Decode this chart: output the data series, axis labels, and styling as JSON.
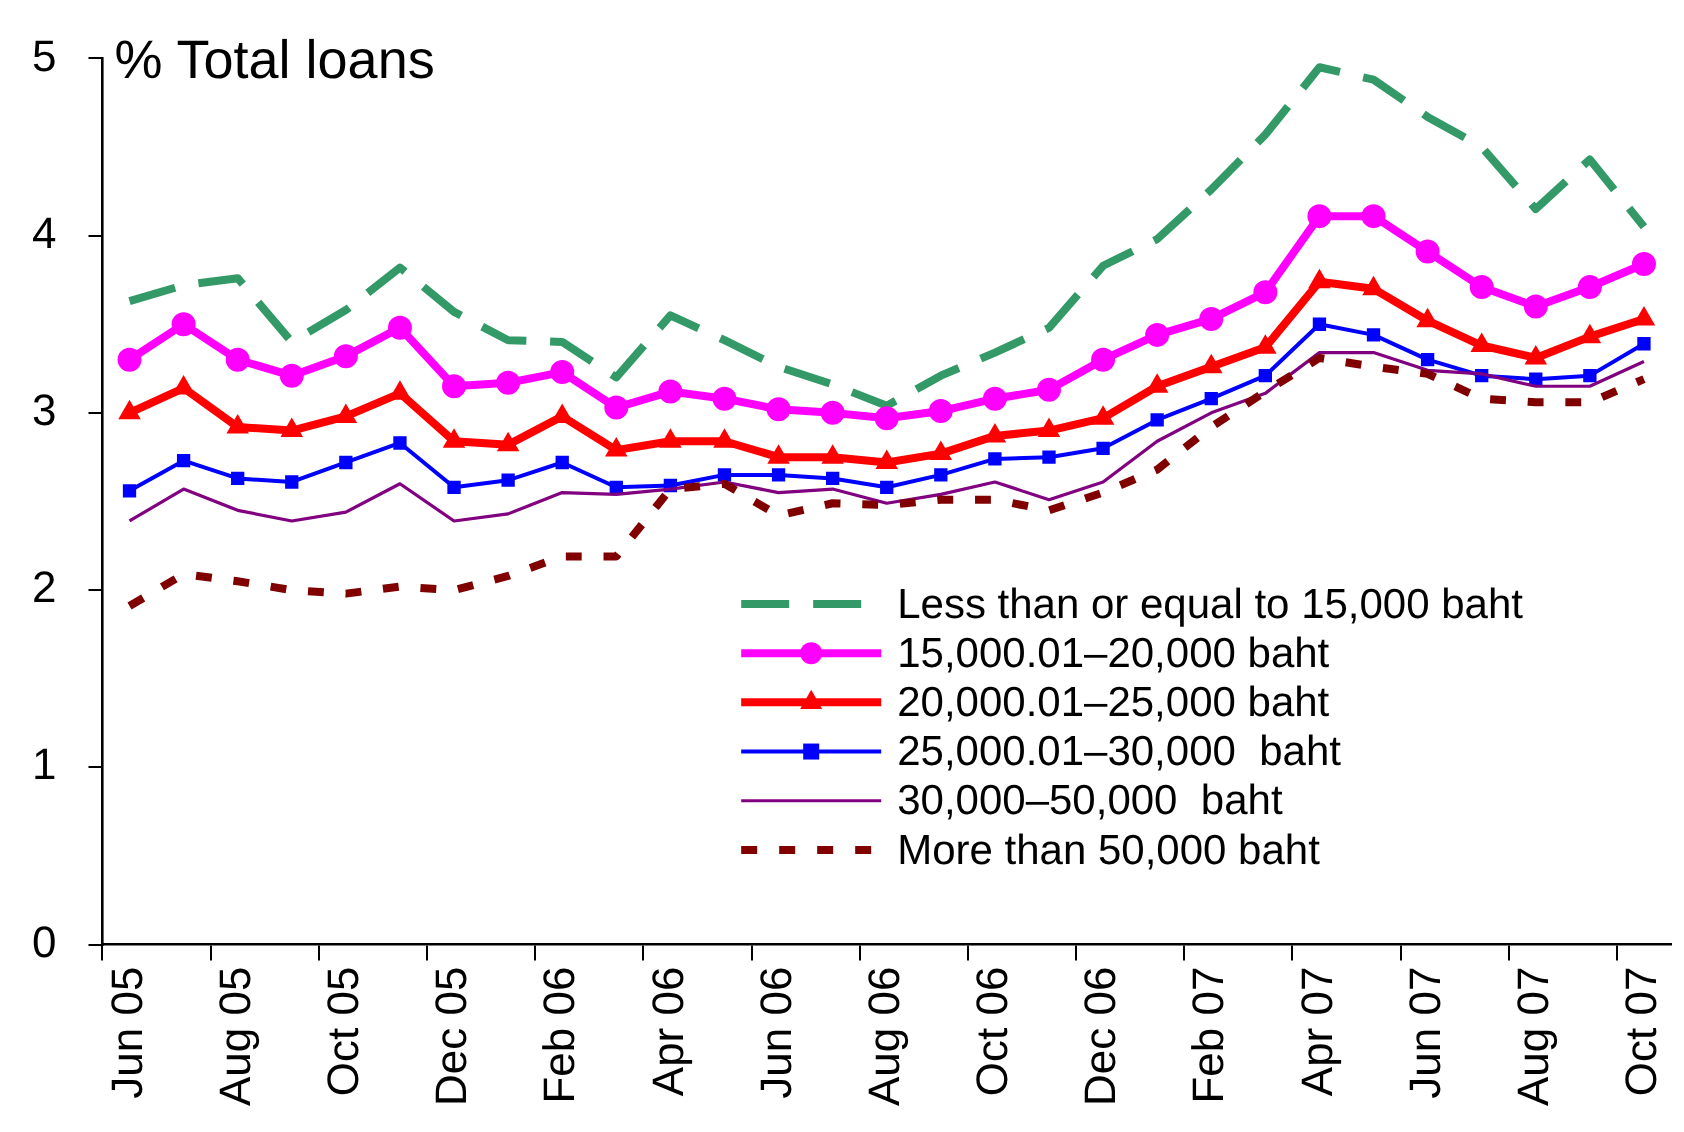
{
  "chart_data": {
    "type": "line",
    "ylabel": "% Total loans",
    "categories": [
      "Jun 05",
      null,
      "Aug 05",
      null,
      "Oct 05",
      null,
      "Dec 05",
      null,
      "Feb 06",
      null,
      "Apr 06",
      null,
      "Jun 06",
      null,
      "Aug 06",
      null,
      "Oct 06",
      null,
      "Dec 06",
      null,
      "Feb 07",
      null,
      "Apr 07",
      null,
      "Jun 07",
      null,
      "Aug 07",
      null,
      "Oct 07"
    ],
    "series": [
      {
        "name": "Less than or equal to 15,000 baht",
        "color": "#339966",
        "line_style": "dashed",
        "marker": "none",
        "values": [
          3.63,
          3.72,
          3.76,
          3.4,
          3.58,
          3.82,
          3.57,
          3.41,
          3.4,
          3.2,
          3.55,
          3.41,
          3.26,
          3.16,
          3.04,
          3.21,
          3.34,
          3.48,
          3.83,
          3.98,
          4.26,
          4.57,
          4.95,
          4.88,
          4.67,
          4.5,
          4.15,
          4.43,
          4.05
        ]
      },
      {
        "name": "15,000.01–20,000 baht",
        "color": "#ff00ff",
        "line_style": "solid",
        "marker": "circle",
        "values": [
          3.3,
          3.5,
          3.3,
          3.21,
          3.32,
          3.48,
          3.15,
          3.17,
          3.23,
          3.03,
          3.12,
          3.08,
          3.02,
          3.0,
          2.97,
          3.01,
          3.08,
          3.13,
          3.3,
          3.44,
          3.53,
          3.68,
          4.11,
          4.11,
          3.91,
          3.71,
          3.6,
          3.71,
          3.84
        ]
      },
      {
        "name": "20,000.01–25,000 baht",
        "color": "#ff0000",
        "line_style": "solid",
        "marker": "triangle",
        "values": [
          3.0,
          3.14,
          2.92,
          2.9,
          2.98,
          3.11,
          2.84,
          2.82,
          2.98,
          2.79,
          2.84,
          2.84,
          2.75,
          2.75,
          2.72,
          2.77,
          2.87,
          2.9,
          2.97,
          3.15,
          3.26,
          3.37,
          3.74,
          3.7,
          3.52,
          3.38,
          3.31,
          3.43,
          3.53
        ]
      },
      {
        "name": "25,000.01–30,000  baht",
        "color": "#0000ff",
        "line_style": "solid",
        "marker": "square",
        "values": [
          2.56,
          2.73,
          2.63,
          2.61,
          2.72,
          2.83,
          2.58,
          2.62,
          2.72,
          2.58,
          2.59,
          2.65,
          2.65,
          2.63,
          2.58,
          2.65,
          2.74,
          2.75,
          2.8,
          2.96,
          3.08,
          3.21,
          3.5,
          3.44,
          3.3,
          3.21,
          3.19,
          3.21,
          3.39
        ]
      },
      {
        "name": "30,000–50,000  baht",
        "color": "#800080",
        "line_style": "solid",
        "marker": "none",
        "values": [
          2.39,
          2.57,
          2.45,
          2.39,
          2.44,
          2.6,
          2.39,
          2.43,
          2.55,
          2.54,
          2.57,
          2.61,
          2.55,
          2.57,
          2.49,
          2.54,
          2.61,
          2.51,
          2.61,
          2.84,
          3.0,
          3.11,
          3.34,
          3.34,
          3.24,
          3.22,
          3.15,
          3.15,
          3.29
        ]
      },
      {
        "name": "More than 50,000 baht",
        "color": "#800000",
        "line_style": "dotted",
        "marker": "none",
        "values": [
          1.91,
          2.09,
          2.05,
          2.0,
          1.98,
          2.02,
          2.0,
          2.08,
          2.19,
          2.19,
          2.57,
          2.6,
          2.42,
          2.49,
          2.48,
          2.51,
          2.51,
          2.45,
          2.55,
          2.68,
          2.92,
          3.12,
          3.31,
          3.26,
          3.22,
          3.08,
          3.06,
          3.06,
          3.19
        ]
      }
    ],
    "ylim": [
      0,
      5
    ],
    "yticks": [
      0,
      1,
      2,
      3,
      4,
      5
    ],
    "grid": false,
    "legend": "bottom right"
  }
}
